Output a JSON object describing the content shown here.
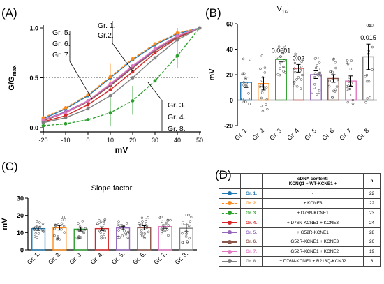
{
  "panels": {
    "A": "(A)",
    "B": "(B)",
    "C": "(C)",
    "D": "(D)"
  },
  "chart_data": [
    {
      "panel": "A",
      "type": "line",
      "xlabel": "mV",
      "ylabel_main": "G/G",
      "ylabel_sub": "max",
      "xlim": [
        -20,
        50
      ],
      "ylim": [
        0,
        1.0
      ],
      "x_ticks": [
        "-20",
        "-10",
        "0",
        "10",
        "20",
        "30",
        "40",
        "50"
      ],
      "y_ticks": [
        "0.0",
        "0.5",
        "1.0"
      ],
      "x": [
        -20,
        -10,
        0,
        10,
        20,
        30,
        40,
        50
      ],
      "reference_line": 0.5,
      "group_labels_top": [
        "Gr. 5.",
        "Gr. 6.",
        "Gr. 7."
      ],
      "group_labels_top2": [
        "Gr. 1.",
        "Gr.2."
      ],
      "group_labels_bottom": [
        "Gr. 3.",
        "Gr. 4.",
        "Gr. 8."
      ],
      "series": [
        {
          "id": "gr1",
          "color": "#1f77b4",
          "dashed": false,
          "values": [
            0.09,
            0.19,
            0.32,
            0.5,
            0.68,
            0.83,
            0.94,
            1.0
          ]
        },
        {
          "id": "gr2",
          "color": "#ff8c1a",
          "dashed": true,
          "values": [
            0.1,
            0.2,
            0.33,
            0.51,
            0.69,
            0.84,
            0.95,
            1.0
          ]
        },
        {
          "id": "gr3",
          "color": "#2ca02c",
          "dashed": true,
          "values": [
            0.02,
            0.04,
            0.08,
            0.15,
            0.27,
            0.47,
            0.72,
            1.0
          ]
        },
        {
          "id": "gr4",
          "color": "#d62728",
          "dashed": false,
          "values": [
            0.06,
            0.12,
            0.23,
            0.38,
            0.56,
            0.75,
            0.9,
            1.0
          ]
        },
        {
          "id": "gr5",
          "color": "#9467bd",
          "dashed": false,
          "values": [
            0.08,
            0.16,
            0.27,
            0.43,
            0.61,
            0.78,
            0.92,
            1.0
          ]
        },
        {
          "id": "gr6",
          "color": "#8c564b",
          "dashed": false,
          "values": [
            0.07,
            0.15,
            0.26,
            0.42,
            0.6,
            0.77,
            0.91,
            1.0
          ]
        },
        {
          "id": "gr7",
          "color": "#e377c2",
          "dashed": false,
          "values": [
            0.08,
            0.15,
            0.27,
            0.44,
            0.62,
            0.79,
            0.92,
            1.0
          ]
        },
        {
          "id": "gr8",
          "color": "#7f7f7f",
          "dashed": false,
          "values": [
            0.05,
            0.1,
            0.19,
            0.32,
            0.5,
            0.7,
            0.88,
            1.0
          ]
        }
      ],
      "error_bars": [
        {
          "series": "gr2",
          "x": 10,
          "low": 0.38,
          "high": 0.64
        },
        {
          "series": "gr3",
          "x": 10,
          "low": 0.02,
          "high": 0.3
        },
        {
          "series": "gr3",
          "x": 20,
          "low": 0.13,
          "high": 0.42
        },
        {
          "series": "gr8",
          "x": 40,
          "low": 0.6,
          "high": 1.0
        }
      ]
    },
    {
      "panel": "B",
      "type": "bar",
      "title": "V",
      "title_sub": "1/2",
      "ylabel": "mV",
      "ylim": [
        -20,
        60
      ],
      "y_ticks": [
        "-20",
        "0",
        "20",
        "40",
        "60"
      ],
      "categories": [
        "Gr. 1.",
        "Gr. 2.",
        "Gr. 3.",
        "Gr. 4.",
        "Gr. 5.",
        "Gr. 6.",
        "Gr. 7.",
        "Gr. 8."
      ],
      "values": [
        14,
        13,
        32,
        25,
        20,
        17,
        15,
        34
      ],
      "errors": [
        4,
        5,
        2,
        3,
        3,
        3,
        4,
        10
      ],
      "colors": [
        "#1f77b4",
        "#ff8c1a",
        "#2ca02c",
        "#d62728",
        "#9467bd",
        "#8c564b",
        "#e377c2",
        "#7f7f7f"
      ],
      "annotations": [
        {
          "category": "Gr. 3.",
          "text": "0.0001"
        },
        {
          "category": "Gr. 4.",
          "text": "0.02"
        },
        {
          "category": "Gr. 8.",
          "text": "0.015"
        }
      ]
    },
    {
      "panel": "C",
      "type": "bar",
      "title": "Slope factor",
      "ylabel": "mV",
      "ylim": [
        0,
        30
      ],
      "y_ticks": [
        "0",
        "10",
        "20",
        "30"
      ],
      "categories": [
        "Gr. 1.",
        "Gr. 2.",
        "Gr. 3.",
        "Gr. 4.",
        "Gr. 5.",
        "Gr. 6.",
        "Gr. 7.",
        "Gr. 8."
      ],
      "values": [
        12.3,
        12.8,
        12.0,
        12.3,
        12.7,
        12.8,
        13.5,
        12.5
      ],
      "errors": [
        1.0,
        1.3,
        1.1,
        1.0,
        1.0,
        1.2,
        1.0,
        2.0
      ],
      "colors": [
        "#1f77b4",
        "#ff8c1a",
        "#2ca02c",
        "#d62728",
        "#9467bd",
        "#8c564b",
        "#e377c2",
        "#7f7f7f"
      ]
    }
  ],
  "table": {
    "header_line1": "cDNA content:",
    "header_line2": "KCNQ1 + WT-KCNE1 +",
    "header_n": "n",
    "rows": [
      {
        "group": "Gr. 1.",
        "content": "-",
        "n": "22",
        "color": "#1f77b4",
        "dashed": false
      },
      {
        "group": "Gr. 2.",
        "content": "+ KCNE3",
        "n": "22",
        "color": "#ff8c1a",
        "dashed": true
      },
      {
        "group": "Gr. 3.",
        "content": "+ D76N-KCNE1",
        "n": "23",
        "color": "#2ca02c",
        "dashed": true
      },
      {
        "group": "Gr. 4.",
        "content": "+ D76N-KCNE1 + KCNE3",
        "n": "24",
        "color": "#d62728",
        "dashed": false
      },
      {
        "group": "Gr. 5.",
        "content": "+ G52R-KCNE1",
        "n": "28",
        "color": "#9467bd",
        "dashed": false
      },
      {
        "group": "Gr. 6.",
        "content": "+ G52R-KCNE1 + KCNE3",
        "n": "26",
        "color": "#8c564b",
        "dashed": false
      },
      {
        "group": "Gr. 7.",
        "content": "+ G52R-KCNE1 + KCNE2",
        "n": "19",
        "color": "#e377c2",
        "dashed": false
      },
      {
        "group": "Gr. 8.",
        "content": "+ D76N-KCNE1 + R218Q-KCNJ2",
        "n": "8",
        "color": "#7f7f7f",
        "dashed": false
      }
    ]
  }
}
